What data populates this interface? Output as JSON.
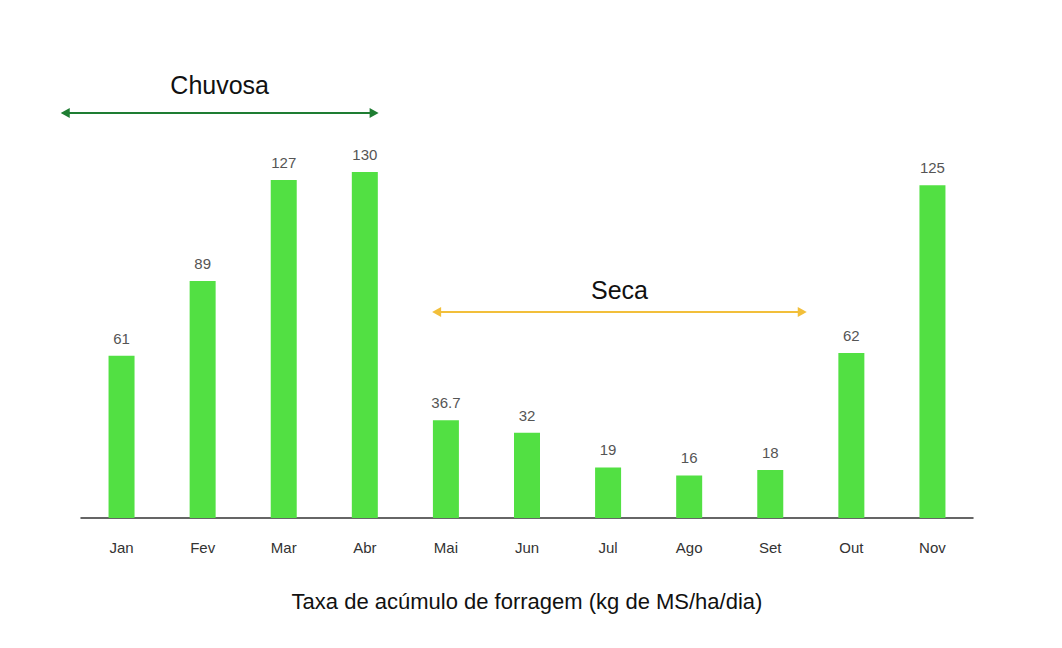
{
  "chart_data": {
    "type": "bar",
    "x_label": "Taxa de acúmulo de forragem (kg de MS/ha/dia)",
    "categories": [
      "Jan",
      "Fev",
      "Mar",
      "Abr",
      "Mai",
      "Jun",
      "Jul",
      "Ago",
      "Set",
      "Out",
      "Nov"
    ],
    "values": [
      61,
      89,
      127,
      130,
      36.7,
      32,
      19,
      16,
      18,
      62,
      125
    ],
    "color": "#52e043",
    "ylim": [
      0,
      130
    ],
    "yticks": [
      0,
      130
    ],
    "grid": false,
    "data_labels": true,
    "tick_labels": "x",
    "annotations": [
      {
        "text": "Chuvosa",
        "start": "Jan",
        "end": "Abr",
        "color": "#1e7d32"
      },
      {
        "text": "Seca",
        "start": "Mai",
        "end": "Set",
        "color": "#f2bf3a"
      }
    ]
  }
}
